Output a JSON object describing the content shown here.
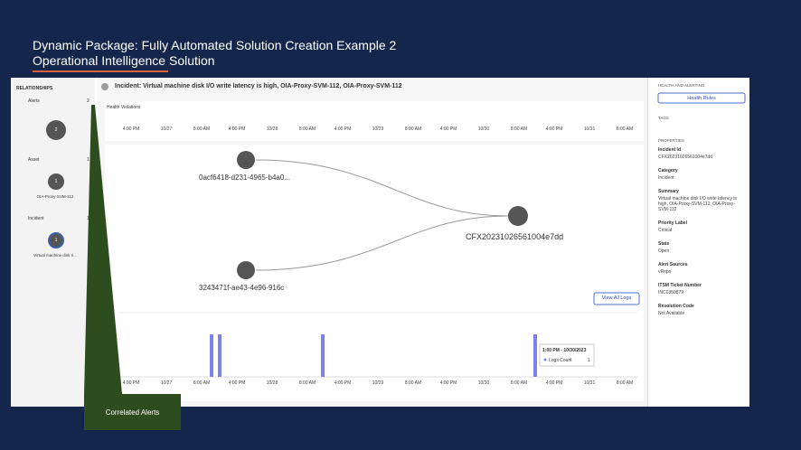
{
  "slide": {
    "title": "Dynamic Package: Fully Automated Solution Creation Example 2",
    "subtitle": "Operational Intelligence Solution",
    "callout": "Correlated Alerts"
  },
  "sidebar": {
    "title": "RELATIONSHIPS",
    "groups": [
      {
        "label": "Alerts",
        "count": "2",
        "node": "2",
        "caption": ""
      },
      {
        "label": "Asset",
        "count": "1",
        "node": "1",
        "caption": "OIA-Proxy-SVM-112"
      },
      {
        "label": "Incident",
        "count": "1",
        "node": "1",
        "caption": "Virtual machine disk I/..."
      }
    ]
  },
  "incident": {
    "title": "Incident: Virtual machine disk I/O write latency is high, OIA-Proxy-SVM-112, OIA-Proxy-SVM-112",
    "health_violations": "Health Violations",
    "timeline_ticks": [
      "4:00 PM",
      "10/27",
      "8:00 AM",
      "4:00 PM",
      "10/28",
      "8:00 AM",
      "4:00 PM",
      "10/29",
      "8:00 AM",
      "4:00 PM",
      "10/30",
      "8:00 AM",
      "4:00 PM",
      "10/31",
      "8:00 AM"
    ],
    "nodes": [
      "0acf6418-d231-4965-b4a0...",
      "3243471f-ae43-4e96-916c",
      "CFX20231026561004e7dd"
    ],
    "view_logs": "View All Logs",
    "logs_ticks": [
      "4:00 PM",
      "10/27",
      "8:00 AM",
      "4:00 PM",
      "10/28",
      "8:00 AM",
      "4:00 PM",
      "10/29",
      "8:00 AM",
      "4:00 PM",
      "10/30",
      "8:00 AM",
      "4:00 PM",
      "10/31",
      "8:00 AM"
    ],
    "tooltip": {
      "time": "1:00 PM - 10/30/2023",
      "label": "Logs Count",
      "value": "1"
    }
  },
  "right": {
    "section": "HEALTH AND ALERTING",
    "button": "Health Rules",
    "tags": "TAGS",
    "properties": "PROPERTIES",
    "items": [
      [
        "Incident Id",
        "CFX20231026561004e7dd"
      ],
      [
        "Category",
        "Incident"
      ],
      [
        "Summary",
        "Virtual machine disk I/O write latency is high, OIA-Proxy-SVM-112, OIA-Proxy-SVM-112"
      ],
      [
        "Priority Label",
        "Critical"
      ],
      [
        "State",
        "Open"
      ],
      [
        "Alert Sources",
        "vRops"
      ],
      [
        "ITSM Ticket Number",
        "INC0350879"
      ],
      [
        "Resolution Code",
        "Not Available"
      ]
    ]
  }
}
